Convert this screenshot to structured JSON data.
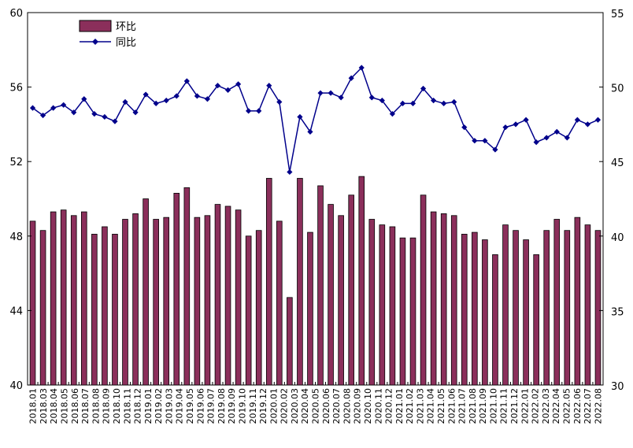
{
  "chart_data": {
    "type": "bar+line",
    "title": "",
    "categories": [
      "2018.01",
      "2018.02",
      "2018.03",
      "2018.04",
      "2018.05",
      "2018.06",
      "2018.07",
      "2018.08",
      "2018.09",
      "2018.10",
      "2018.11",
      "2018.12",
      "2019.01",
      "2019.02",
      "2019.03",
      "2019.04",
      "2019.05",
      "2019.06",
      "2019.07",
      "2019.08",
      "2019.09",
      "2019.10",
      "2019.11",
      "2019.12",
      "2020.01",
      "2020.02",
      "2020.03",
      "2020.04",
      "2020.05",
      "2020.06",
      "2020.07",
      "2020.08",
      "2020.09",
      "2020.10",
      "2020.11",
      "2020.12",
      "2021.01",
      "2021.02",
      "2021.03",
      "2021.04",
      "2021.05",
      "2021.06",
      "2021.07",
      "2021.08",
      "2021.09",
      "2021.10",
      "2021.11",
      "2021.12",
      "2022.01",
      "2022.02",
      "2022.03",
      "2022.04",
      "2022.05",
      "2022.06",
      "2022.07",
      "2022.08"
    ],
    "x_tick_labels": [
      "2018.01",
      "2018.03",
      "2018.04",
      "2018.05",
      "2018.06",
      "2018.07",
      "2018.08",
      "2018.09",
      "2018.10",
      "2018.11",
      "2018.12",
      "2019.01",
      "2019.02",
      "2019.03",
      "2019.04",
      "2019.05",
      "2019.06",
      "2019.07",
      "2019.08",
      "2019.09",
      "2019.10",
      "2019.11",
      "2019.12",
      "2020.01",
      "2020.02",
      "2020.03",
      "2020.04",
      "2020.05",
      "2020.06",
      "2020.07",
      "2020.08",
      "2020.09",
      "2020.10",
      "2020.11",
      "2020.12",
      "2021.01",
      "2021.02",
      "2021.03",
      "2021.04",
      "2021.05",
      "2021.06",
      "2021.07",
      "2021.08",
      "2021.09",
      "2021.10",
      "2021.11",
      "2021.12",
      "2022.01",
      "2022.02",
      "2022.03",
      "2022.04",
      "2022.05",
      "2022.06",
      "2022.07",
      "2022.08"
    ],
    "series": [
      {
        "name": "环比",
        "chart": "bar",
        "axis": "left",
        "color": "#8B2F5B",
        "values": [
          48.8,
          48.3,
          49.3,
          49.4,
          49.1,
          49.3,
          48.1,
          48.5,
          48.1,
          48.9,
          49.2,
          50.0,
          48.9,
          49.0,
          50.3,
          50.6,
          49.0,
          49.1,
          49.7,
          49.6,
          49.4,
          48.0,
          48.3,
          51.1,
          48.8,
          44.7,
          51.1,
          48.2,
          50.7,
          49.7,
          49.1,
          50.2,
          51.2,
          48.9,
          48.6,
          48.5,
          47.9,
          47.9,
          50.2,
          49.3,
          49.2,
          49.1,
          48.1,
          48.2,
          47.8,
          47.0,
          48.6,
          48.3,
          47.8,
          47.0,
          48.3,
          48.9,
          48.3,
          49.0,
          48.6,
          48.3
        ]
      },
      {
        "name": "同比",
        "chart": "line",
        "axis": "right",
        "color": "#00008B",
        "values": [
          48.6,
          48.1,
          48.6,
          48.8,
          48.3,
          49.2,
          48.2,
          48.0,
          47.7,
          49.0,
          48.3,
          49.5,
          48.9,
          49.1,
          49.4,
          50.4,
          49.4,
          49.2,
          50.1,
          49.8,
          50.2,
          48.4,
          48.4,
          50.1,
          49.0,
          44.3,
          48.0,
          47.0,
          49.6,
          49.6,
          49.3,
          50.6,
          51.3,
          49.3,
          49.1,
          48.2,
          48.9,
          48.9,
          49.9,
          49.1,
          48.9,
          49.0,
          47.3,
          46.4,
          46.4,
          45.8,
          47.3,
          47.5,
          47.8,
          46.3,
          46.6,
          47.0,
          46.6,
          47.8,
          47.5,
          47.8
        ]
      }
    ],
    "y_left": {
      "ticks": [
        "40",
        "44",
        "48",
        "52",
        "56",
        "60"
      ],
      "ylim": [
        40,
        60
      ]
    },
    "y_right": {
      "ticks": [
        "30",
        "35",
        "40",
        "45",
        "50",
        "55"
      ],
      "ylim": [
        30,
        55
      ]
    },
    "legend": {
      "placement": "top-left",
      "entries": [
        "环比",
        "同比"
      ]
    },
    "grid": false
  }
}
